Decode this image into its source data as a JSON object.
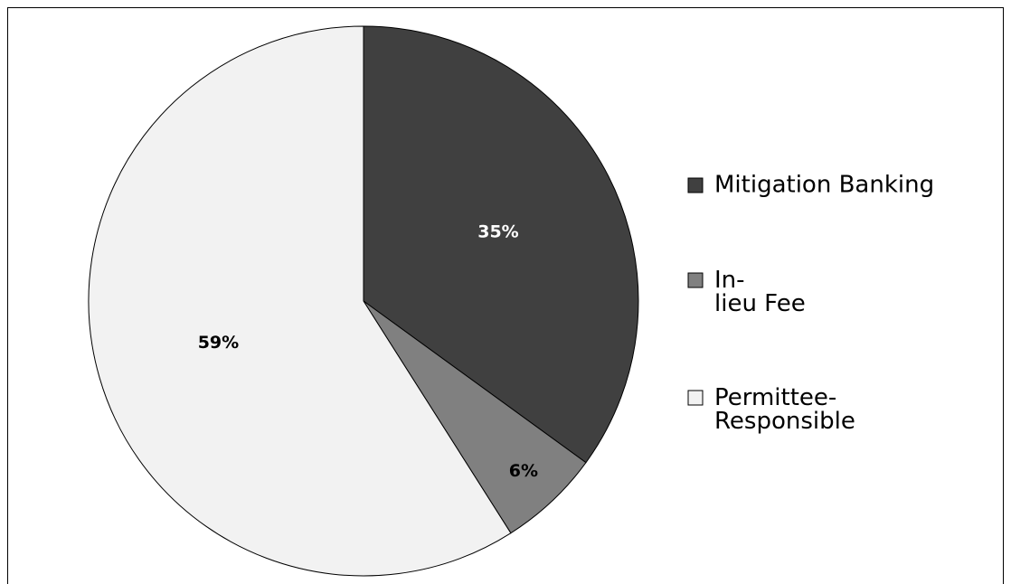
{
  "chart_data": {
    "type": "pie",
    "categories": [
      "Mitigation Banking",
      "In-lieu Fee",
      "Permittee-Responsible"
    ],
    "values": [
      35,
      6,
      59
    ],
    "value_labels": [
      "35%",
      "6%",
      "59%"
    ],
    "colors": [
      "#404040",
      "#808080",
      "#f2f2f2"
    ],
    "label_colors": [
      "#ffffff",
      "#000000",
      "#000000"
    ],
    "legend": "right"
  }
}
